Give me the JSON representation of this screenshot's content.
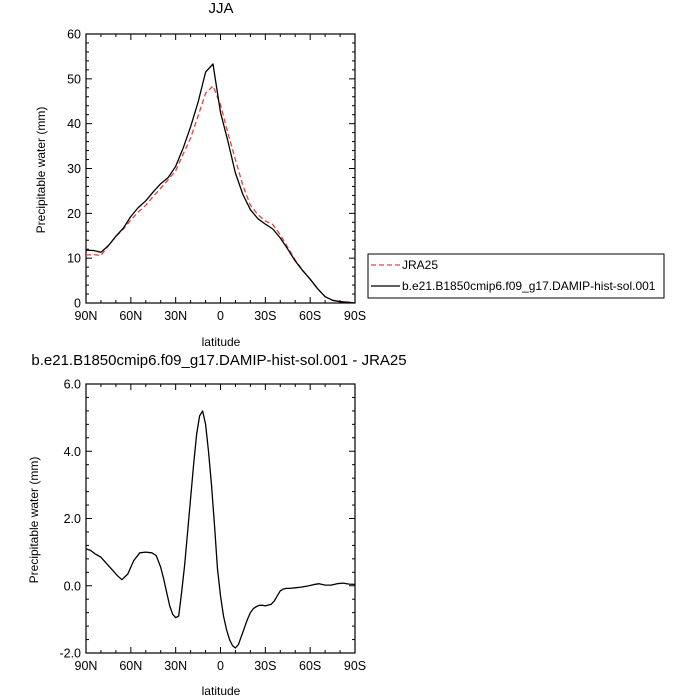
{
  "chart_data": [
    {
      "type": "line",
      "title": "JJA",
      "xlabel": "latitude",
      "ylabel": "Precipitable water (mm)",
      "xlim": [
        90,
        -90
      ],
      "ylim": [
        0,
        60
      ],
      "x_ticks": [
        90,
        60,
        30,
        0,
        -30,
        -60,
        -90
      ],
      "x_tick_labels": [
        "90N",
        "60N",
        "30N",
        "0",
        "30S",
        "60S",
        "90S"
      ],
      "y_ticks": [
        0,
        10,
        20,
        30,
        40,
        50,
        60
      ],
      "y_tick_labels": [
        "0",
        "10",
        "20",
        "30",
        "40",
        "50",
        "60"
      ],
      "legend_position": "right",
      "series": [
        {
          "name": "JRA25",
          "color": "#e8403a",
          "dash": "dashed",
          "x": [
            90,
            85,
            80,
            75,
            70,
            65,
            60,
            55,
            50,
            45,
            40,
            35,
            30,
            25,
            20,
            15,
            10,
            5,
            0,
            -5,
            -10,
            -15,
            -20,
            -25,
            -30,
            -35,
            -40,
            -45,
            -50,
            -55,
            -60,
            -65,
            -70,
            -75,
            -80,
            -85,
            -90
          ],
          "y": [
            10.7,
            10.8,
            10.6,
            12.8,
            14.8,
            16.5,
            18.5,
            20.3,
            21.8,
            23.8,
            25.6,
            27.5,
            29.5,
            33.2,
            36.8,
            41.7,
            46.8,
            48.4,
            44.2,
            37.8,
            32.0,
            26.2,
            21.8,
            19.7,
            18.3,
            17.5,
            15.2,
            12.4,
            9.6,
            7.3,
            5.3,
            3.2,
            1.4,
            0.6,
            0.3,
            0.2,
            0.0
          ]
        },
        {
          "name": "b.e21.B1850cmip6.f09_g17.DAMIP-hist-sol.001",
          "color": "#000000",
          "dash": "solid",
          "x": [
            90,
            85,
            80,
            75,
            70,
            65,
            60,
            55,
            50,
            45,
            40,
            35,
            30,
            25,
            20,
            15,
            10,
            5,
            0,
            -5,
            -10,
            -15,
            -20,
            -25,
            -30,
            -35,
            -40,
            -45,
            -50,
            -55,
            -60,
            -65,
            -70,
            -75,
            -80,
            -85,
            -90
          ],
          "y": [
            11.8,
            11.7,
            11.3,
            12.8,
            14.9,
            16.7,
            19.3,
            21.3,
            22.8,
            24.8,
            26.6,
            28.0,
            30.5,
            34.5,
            39.3,
            44.8,
            51.5,
            53.3,
            42.5,
            36.0,
            29.0,
            24.2,
            20.8,
            18.8,
            17.6,
            16.5,
            14.5,
            12.0,
            9.4,
            7.2,
            5.3,
            3.2,
            1.4,
            0.6,
            0.3,
            0.2,
            0.0
          ]
        }
      ]
    },
    {
      "type": "line",
      "title": "b.e21.B1850cmip6.f09_g17.DAMIP-hist-sol.001 - JRA25",
      "xlabel": "latitude",
      "ylabel": "Precipitable water (mm)",
      "xlim": [
        90,
        -90
      ],
      "ylim": [
        -2.0,
        6.0
      ],
      "x_ticks": [
        90,
        60,
        30,
        0,
        -30,
        -60,
        -90
      ],
      "x_tick_labels": [
        "90N",
        "60N",
        "30N",
        "0",
        "30S",
        "60S",
        "90S"
      ],
      "y_ticks": [
        -2,
        0,
        2,
        4,
        6
      ],
      "y_tick_labels": [
        "-2.0",
        "0.0",
        "2.0",
        "4.0",
        "6.0"
      ],
      "series": [
        {
          "color": "#000000",
          "dash": "solid",
          "x": [
            90,
            87,
            84,
            80,
            76,
            72,
            69,
            66,
            62,
            58,
            54,
            50,
            46,
            43,
            40,
            38,
            36,
            34,
            32,
            30,
            28,
            26,
            24,
            22,
            20,
            18,
            16,
            14,
            12,
            10,
            8,
            6,
            4,
            2,
            0,
            -2,
            -4,
            -6,
            -8,
            -10,
            -12,
            -14,
            -16,
            -18,
            -20,
            -22,
            -24,
            -26,
            -28,
            -30,
            -34,
            -36,
            -38,
            -40,
            -42,
            -44,
            -46,
            -48,
            -50,
            -54,
            -58,
            -62,
            -66,
            -70,
            -74,
            -78,
            -82,
            -86,
            -90
          ],
          "y": [
            1.1,
            1.05,
            0.95,
            0.85,
            0.65,
            0.45,
            0.3,
            0.18,
            0.35,
            0.75,
            0.98,
            1.0,
            0.98,
            0.9,
            0.55,
            0.2,
            -0.2,
            -0.6,
            -0.85,
            -0.95,
            -0.9,
            -0.2,
            0.6,
            1.6,
            2.6,
            3.6,
            4.5,
            5.05,
            5.2,
            4.8,
            4.0,
            3.0,
            1.8,
            0.5,
            -0.3,
            -0.9,
            -1.3,
            -1.6,
            -1.78,
            -1.85,
            -1.75,
            -1.5,
            -1.25,
            -1.0,
            -0.8,
            -0.68,
            -0.62,
            -0.58,
            -0.58,
            -0.6,
            -0.55,
            -0.45,
            -0.3,
            -0.15,
            -0.1,
            -0.08,
            -0.08,
            -0.07,
            -0.06,
            -0.04,
            -0.01,
            0.03,
            0.06,
            0.02,
            0.02,
            0.06,
            0.08,
            0.05,
            0.04
          ]
        }
      ]
    }
  ]
}
